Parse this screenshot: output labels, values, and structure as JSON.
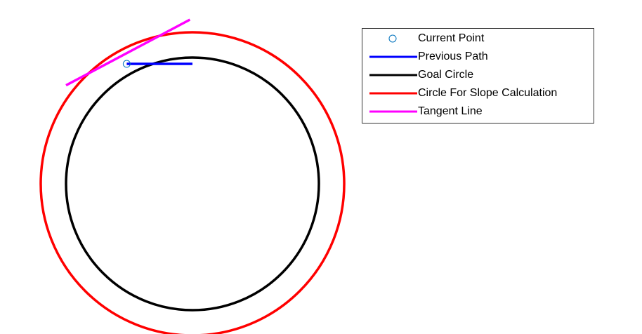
{
  "chart_data": {
    "type": "line",
    "title": "",
    "xlabel": "",
    "ylabel": "",
    "axes_visible": false,
    "grid": false,
    "legend_position": "top-right",
    "series": [
      {
        "name": "Current Point",
        "kind": "marker",
        "marker": "circle",
        "color": "#0072BD",
        "x": [
          -0.52
        ],
        "y": [
          0.95
        ]
      },
      {
        "name": "Previous Path",
        "kind": "line",
        "color": "#0000FF",
        "x": [
          -0.52,
          0.0
        ],
        "y": [
          0.95,
          0.95
        ]
      },
      {
        "name": "Goal Circle",
        "kind": "circle",
        "color": "#000000",
        "center": [
          0,
          0
        ],
        "radius": 1.0
      },
      {
        "name": "Circle For Slope Calculation",
        "kind": "circle",
        "color": "#FF0000",
        "center": [
          0,
          0
        ],
        "radius": 1.2
      },
      {
        "name": "Tangent Line",
        "kind": "line",
        "color": "#FF00FF",
        "x": [
          -1.0,
          -0.02
        ],
        "y": [
          0.78,
          1.3
        ]
      }
    ]
  }
}
